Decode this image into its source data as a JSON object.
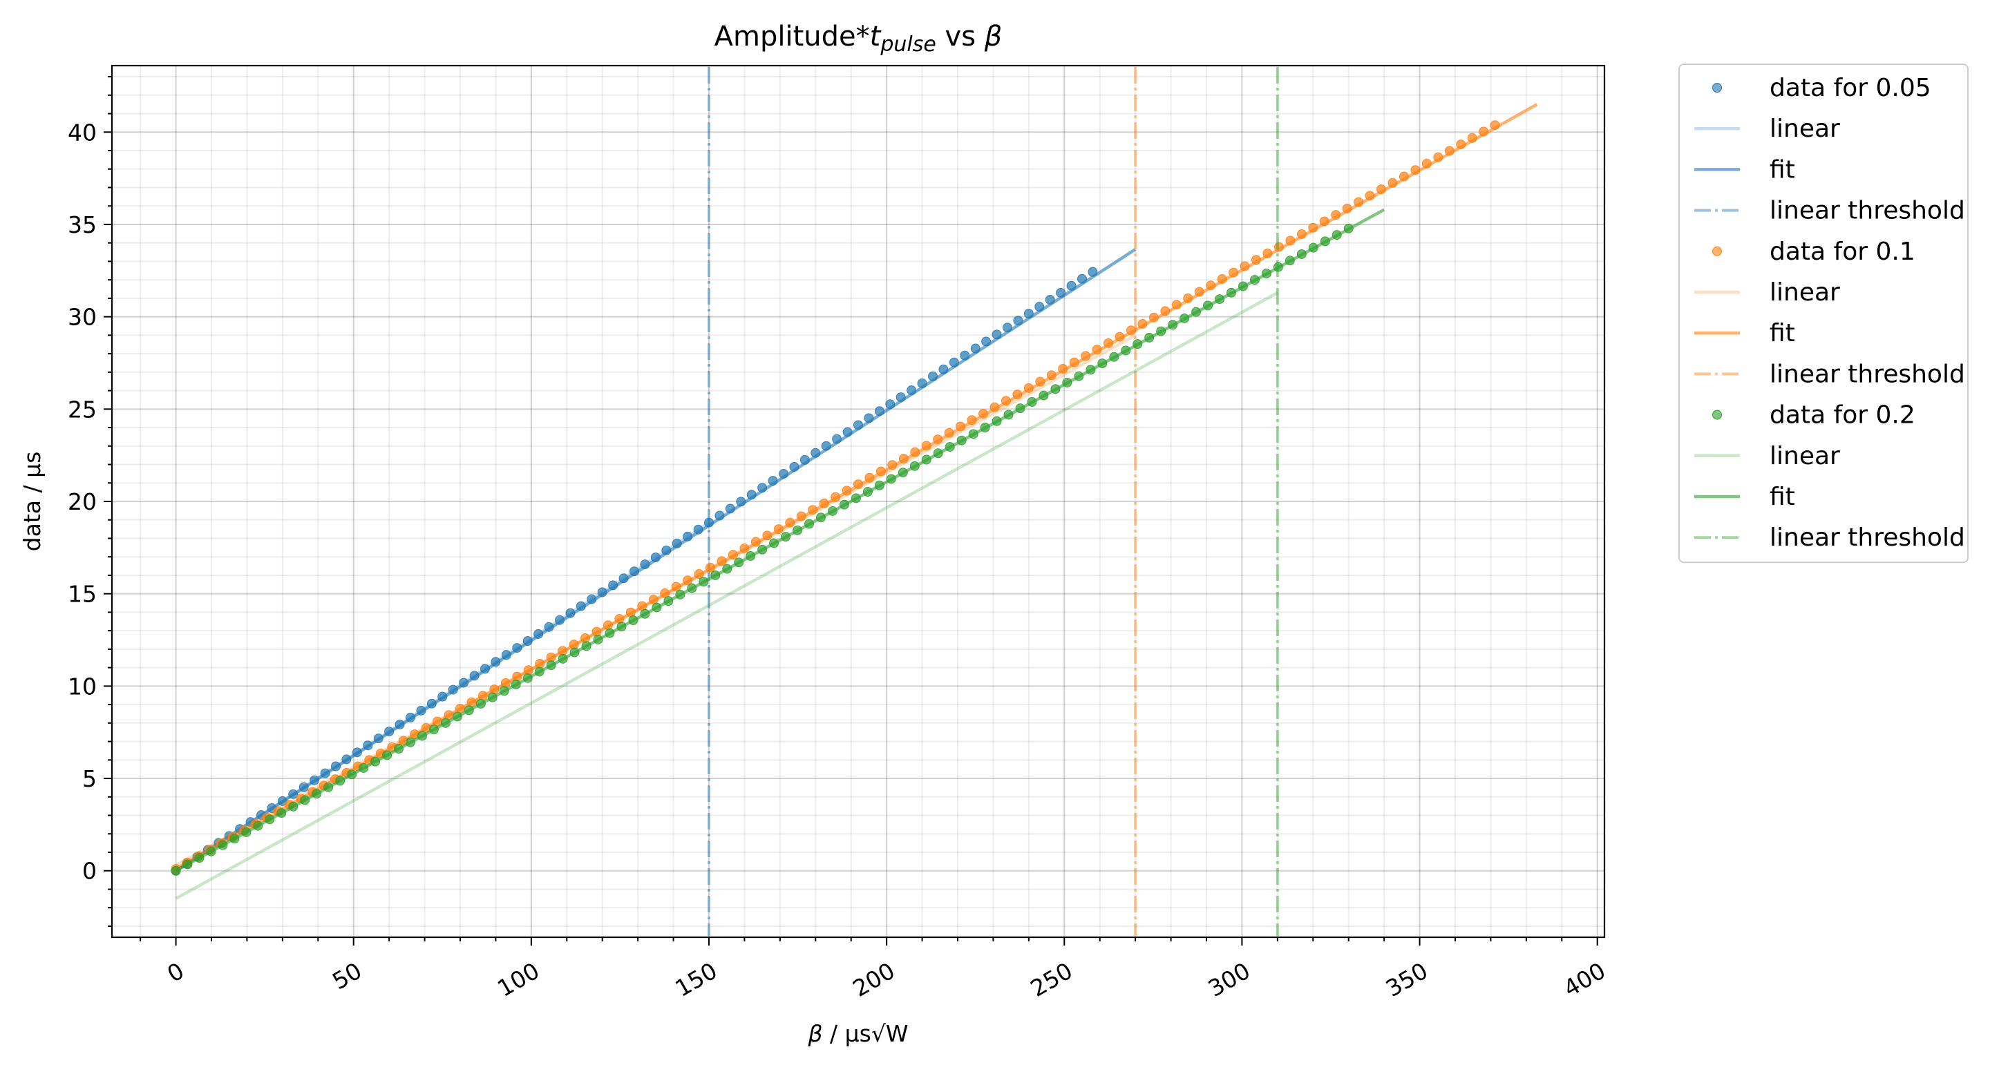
{
  "chart_data": {
    "type": "line",
    "title": {
      "main": "Amplitude*",
      "var": "t",
      "sub": "pulse",
      "rest": " vs ",
      "beta": "β"
    },
    "xlabel": {
      "beta": "β",
      "rest": " / μs√W"
    },
    "ylabel": "data / μs",
    "xlim": [
      -18,
      402
    ],
    "ylim": [
      -3.6,
      43.6
    ],
    "x_ticks": [
      0,
      50,
      100,
      150,
      200,
      250,
      300,
      350,
      400
    ],
    "y_ticks": [
      0,
      5,
      10,
      15,
      20,
      25,
      30,
      35,
      40
    ],
    "grid": true,
    "legend_position": "outside-right",
    "series": [
      {
        "name": "0.05",
        "color": "#1f77b4",
        "data_label": "data for 0.05",
        "linear_label": "linear",
        "fit_label": "fit",
        "threshold_label": "linear threshold",
        "data_x_step": 3,
        "data_x_max": 259,
        "data_slope": 0.1257,
        "data_intercept": 0.0,
        "linear": [
          [
            0,
            0.0
          ],
          [
            150,
            18.85
          ]
        ],
        "fit": [
          [
            0,
            0.0
          ],
          [
            270,
            33.65
          ]
        ],
        "threshold_x": 150
      },
      {
        "name": "0.1",
        "color": "#ff7f0e",
        "data_label": "data for 0.1",
        "linear_label": "linear",
        "fit_label": "fit",
        "threshold_label": "linear threshold",
        "data_x_step": 3.2,
        "data_x_max": 373,
        "data_slope": 0.1085,
        "data_intercept": 0.1,
        "linear": [
          [
            0,
            0.3
          ],
          [
            270,
            29.0
          ]
        ],
        "fit": [
          [
            0,
            0.1
          ],
          [
            383,
            41.5
          ]
        ],
        "threshold_x": 270
      },
      {
        "name": "0.2",
        "color": "#2ca02c",
        "data_label": "data for 0.2",
        "linear_label": "linear",
        "fit_label": "fit",
        "threshold_label": "linear threshold",
        "data_x_step": 3.3,
        "data_x_max": 330,
        "data_slope": 0.1054,
        "data_intercept": 0.0,
        "linear": [
          [
            0,
            -1.5
          ],
          [
            310,
            31.3
          ]
        ],
        "fit": [
          [
            0,
            0.0
          ],
          [
            340,
            35.8
          ]
        ],
        "threshold_x": 310
      }
    ]
  }
}
